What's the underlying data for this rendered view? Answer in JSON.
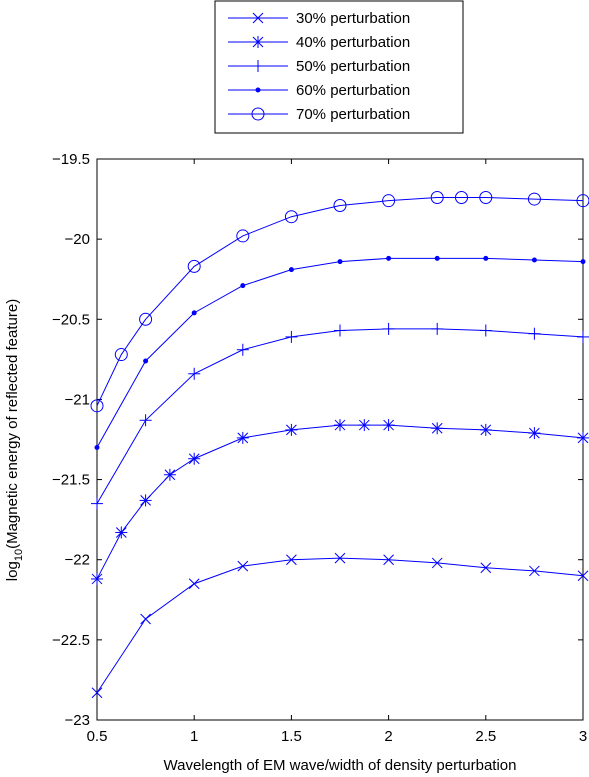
{
  "chart_data": {
    "type": "line",
    "xlabel": "Wavelength of EM wave/width of density perturbation",
    "ylabel_prefix": "log",
    "ylabel_sub": "10",
    "ylabel_rest": "(Magnetic energy of reflected feature)",
    "xlim": [
      0.5,
      3
    ],
    "ylim": [
      -23,
      -19.5
    ],
    "xticks": [
      "0.5",
      "1",
      "1.5",
      "2",
      "2.5",
      "3"
    ],
    "yticks": [
      "−19.5",
      "−20",
      "−20.5",
      "−21",
      "−21.5",
      "−22",
      "−22.5",
      "−23"
    ],
    "legend_position": "top-center",
    "line_color": "#0000ff",
    "series": [
      {
        "name": "30% perturbation",
        "marker": "x",
        "x": [
          0.5,
          0.75,
          1,
          1.25,
          1.5,
          1.75,
          2,
          2.25,
          2.5,
          2.75,
          3
        ],
        "y": [
          -22.83,
          -22.37,
          -22.15,
          -22.04,
          -22.0,
          -21.99,
          -22.0,
          -22.02,
          -22.05,
          -22.07,
          -22.1
        ]
      },
      {
        "name": "40% perturbation",
        "marker": "star",
        "x": [
          0.5,
          0.625,
          0.75,
          0.875,
          1,
          1.25,
          1.5,
          1.75,
          1.875,
          2,
          2.25,
          2.5,
          2.75,
          3
        ],
        "y": [
          -22.12,
          -21.83,
          -21.63,
          -21.47,
          -21.37,
          -21.24,
          -21.19,
          -21.16,
          -21.16,
          -21.16,
          -21.18,
          -21.19,
          -21.21,
          -21.24
        ]
      },
      {
        "name": "50% perturbation",
        "marker": "plus",
        "x": [
          0.5,
          0.75,
          1,
          1.25,
          1.5,
          1.75,
          2,
          2.25,
          2.5,
          2.75,
          3
        ],
        "y": [
          -21.65,
          -21.13,
          -20.84,
          -20.69,
          -20.61,
          -20.57,
          -20.56,
          -20.56,
          -20.57,
          -20.59,
          -20.61
        ]
      },
      {
        "name": "60% perturbation",
        "marker": "dot",
        "x": [
          0.5,
          0.75,
          1,
          1.25,
          1.5,
          1.75,
          2,
          2.25,
          2.5,
          2.75,
          3
        ],
        "y": [
          -21.3,
          -20.76,
          -20.46,
          -20.29,
          -20.19,
          -20.14,
          -20.12,
          -20.12,
          -20.12,
          -20.13,
          -20.14
        ]
      },
      {
        "name": "70% perturbation",
        "marker": "circle",
        "x": [
          0.5,
          0.625,
          0.75,
          1,
          1.25,
          1.5,
          1.75,
          2,
          2.25,
          2.375,
          2.5,
          2.75,
          3
        ],
        "y": [
          -21.04,
          -20.72,
          -20.5,
          -20.17,
          -19.98,
          -19.86,
          -19.79,
          -19.76,
          -19.74,
          -19.74,
          -19.74,
          -19.75,
          -19.76
        ]
      }
    ]
  }
}
